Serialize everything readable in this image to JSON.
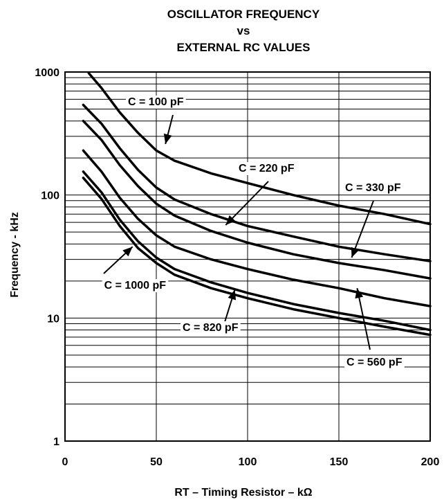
{
  "chart_data": {
    "type": "line",
    "title_lines": [
      "OSCILLATOR FREQUENCY",
      "vs",
      "EXTERNAL RC VALUES"
    ],
    "xlabel": "RT – Timing Resistor – kΩ",
    "ylabel": "Frequency - kHz",
    "xlim": [
      0,
      200
    ],
    "ylim": [
      1,
      1000
    ],
    "yscale": "log",
    "grid": true,
    "x_ticks": [
      0,
      50,
      100,
      150,
      200
    ],
    "x_tick_labels": [
      "0",
      "50",
      "100",
      "150",
      "200"
    ],
    "y_ticks": [
      1,
      10,
      100,
      1000
    ],
    "y_tick_labels": [
      "1",
      "10",
      "100",
      "1000"
    ],
    "series": [
      {
        "name": "C = 100 pF",
        "x": [
          13,
          20,
          30,
          40,
          50,
          60,
          80,
          100,
          125,
          150,
          175,
          200
        ],
        "y": [
          980,
          740,
          470,
          320,
          230,
          190,
          150,
          125,
          100,
          82,
          70,
          58
        ]
      },
      {
        "name": "C = 220 pF",
        "x": [
          10,
          20,
          30,
          40,
          50,
          60,
          80,
          100,
          125,
          150,
          175,
          200
        ],
        "y": [
          540,
          380,
          240,
          160,
          115,
          92,
          70,
          56,
          46,
          38,
          33,
          29
        ]
      },
      {
        "name": "C = 330 pF",
        "x": [
          10,
          20,
          30,
          40,
          50,
          60,
          80,
          100,
          125,
          150,
          175,
          200
        ],
        "y": [
          400,
          280,
          175,
          118,
          85,
          68,
          51,
          41,
          33,
          28,
          24.5,
          21
        ]
      },
      {
        "name": "C = 560 pF",
        "x": [
          10,
          20,
          30,
          40,
          50,
          60,
          80,
          100,
          125,
          150,
          175,
          200
        ],
        "y": [
          230,
          155,
          95,
          64,
          47,
          38,
          30,
          25,
          20.5,
          17.5,
          14.5,
          12.5
        ]
      },
      {
        "name": "C = 820 pF",
        "x": [
          10,
          20,
          30,
          40,
          50,
          60,
          80,
          100,
          125,
          150,
          175,
          200
        ],
        "y": [
          155,
          105,
          63,
          42,
          31,
          25,
          19.5,
          16,
          13,
          11,
          9.5,
          8
        ]
      },
      {
        "name": "C = 1000 pF",
        "x": [
          10,
          20,
          30,
          40,
          50,
          60,
          80,
          100,
          125,
          150,
          175,
          200
        ],
        "y": [
          138,
          93,
          56,
          37,
          28,
          22.5,
          17.5,
          14.5,
          11.8,
          10,
          8.5,
          7.3
        ]
      }
    ],
    "annotations": [
      {
        "text": "C = 100 pF",
        "x": 55,
        "y": 260
      },
      {
        "text": "C = 220 pF",
        "x": 88,
        "y": 57
      },
      {
        "text": "C = 330 pF",
        "x": 157,
        "y": 31
      },
      {
        "text": "C = 560 pF",
        "x": 160,
        "y": 17.5
      },
      {
        "text": "C = 820 pF",
        "x": 93,
        "y": 17
      },
      {
        "text": "C = 1000 pF",
        "x": 37,
        "y": 38
      }
    ]
  }
}
